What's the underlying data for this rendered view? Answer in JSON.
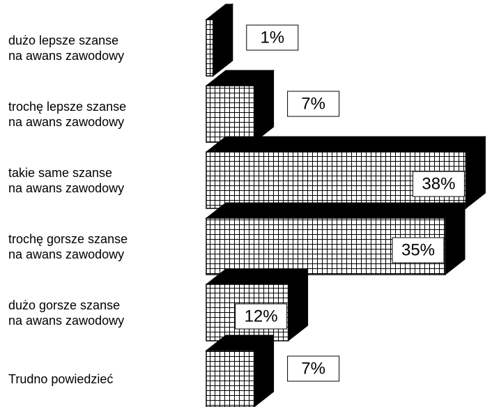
{
  "chart_data": {
    "type": "bar3d",
    "categories": [
      "dużo lepsze szanse\nna awans zawodowy",
      "trochę lepsze szanse\nna awans zawodowy",
      "takie same szanse\nna awans zawodowy",
      "trochę gorsze szanse\nna awans zawodowy",
      "dużo gorsze szanse\nna awans zawodowy",
      "Trudno powiedzieć"
    ],
    "values": [
      1,
      7,
      38,
      35,
      12,
      7
    ],
    "value_labels": [
      "1%",
      "7%",
      "38%",
      "35%",
      "12%",
      "7%"
    ],
    "color": "#000000"
  }
}
